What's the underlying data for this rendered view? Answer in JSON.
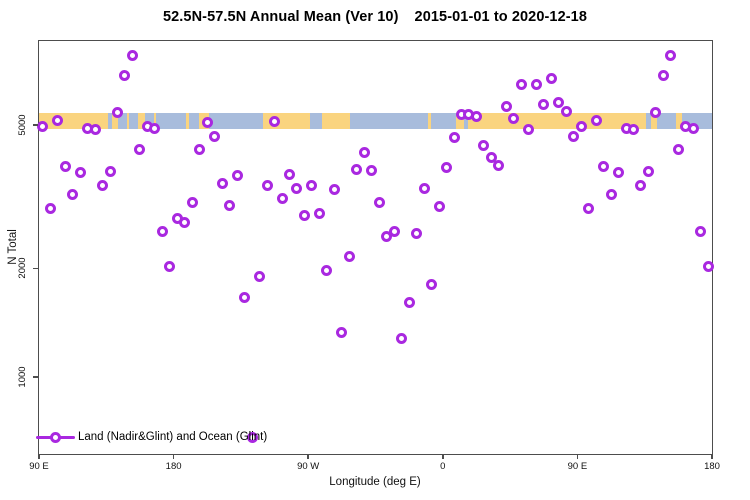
{
  "figure": {
    "title_main": "52.5N-57.5N Annual Mean (Ver 10)",
    "title_dates": "2015-01-01 to 2020-12-18"
  },
  "chart_data": {
    "type": "scatter",
    "title": "52.5N-57.5N Annual Mean (Ver 10)  2015-01-01 to 2020-12-18",
    "xlabel": "Longitude (deg E)",
    "ylabel": "N Total",
    "x_axis": {
      "range": [
        90,
        540
      ],
      "ticks": [
        90,
        180,
        270,
        360,
        450,
        540
      ],
      "tick_labels": [
        "90 E",
        "180",
        "90 W",
        "0",
        "90 E",
        "180"
      ],
      "note": "axis runs eastward from 90E around the globe; the 90E-180 sector is plotted twice (far left and far right)"
    },
    "y_axis": {
      "scale": "log10",
      "range": [
        610,
        8570
      ],
      "ticks": [
        1000,
        2000,
        5000
      ],
      "tick_labels": [
        "1000",
        "2000",
        "5000"
      ]
    },
    "legend": {
      "label": "Land (Nadir&Glint) and Ocean (Glint)",
      "marker": "open-circle-on-line",
      "position": "bottom-left"
    },
    "colors": {
      "point_stroke": "#A928E0",
      "point_fill": "#FFFFFF",
      "land_band": "#FAD47F",
      "ocean_band": "#A8BCDC",
      "axis": "#4D4D4D",
      "text": "#000000"
    },
    "map_band": {
      "description": "surface-type strip (land vs ocean) for the 52.5N-57.5N latitude belt, drawn horizontally at N~5000",
      "segments": [
        [
          90,
          136,
          "land"
        ],
        [
          136,
          139,
          "ocean"
        ],
        [
          139,
          143,
          "land"
        ],
        [
          143,
          149,
          "ocean"
        ],
        [
          149,
          150.5,
          "land"
        ],
        [
          150.5,
          156,
          "ocean"
        ],
        [
          156,
          161,
          "land"
        ],
        [
          161,
          167,
          "ocean"
        ],
        [
          167,
          168.5,
          "land"
        ],
        [
          168.5,
          188,
          "ocean"
        ],
        [
          188,
          190,
          "land"
        ],
        [
          190,
          197,
          "ocean"
        ],
        [
          197,
          204,
          "land"
        ],
        [
          204,
          240,
          "ocean"
        ],
        [
          240,
          271,
          "land"
        ],
        [
          271,
          279,
          "ocean"
        ],
        [
          279,
          298,
          "land"
        ],
        [
          298,
          350,
          "ocean"
        ],
        [
          350,
          352,
          "land"
        ],
        [
          352,
          369,
          "ocean"
        ],
        [
          369,
          374,
          "land"
        ],
        [
          374,
          377,
          "ocean"
        ],
        [
          377,
          496,
          "land"
        ],
        [
          496,
          499,
          "ocean"
        ],
        [
          499,
          503.5,
          "land"
        ],
        [
          503.5,
          516,
          "ocean"
        ],
        [
          516,
          520,
          "land"
        ],
        [
          520,
          540,
          "ocean"
        ]
      ]
    },
    "points_lon_value": [
      [
        92.5,
        4950
      ],
      [
        97.5,
        2930
      ],
      [
        102.5,
        5160
      ],
      [
        107.5,
        3835
      ],
      [
        112.5,
        3215
      ],
      [
        117.5,
        3690
      ],
      [
        122.5,
        4890
      ],
      [
        127.5,
        4875
      ],
      [
        132.5,
        3390
      ],
      [
        137.5,
        3710
      ],
      [
        142.5,
        5425
      ],
      [
        147.5,
        6875
      ],
      [
        152.5,
        7800
      ],
      [
        157.5,
        4290
      ],
      [
        162.5,
        4950
      ],
      [
        167.5,
        4905
      ],
      [
        172.5,
        2525
      ],
      [
        177.5,
        2020
      ],
      [
        182.5,
        2745
      ],
      [
        187.5,
        2675
      ],
      [
        192.5,
        3040
      ],
      [
        197.5,
        4280
      ],
      [
        202.5,
        5100
      ],
      [
        207.5,
        4655
      ],
      [
        212.5,
        3435
      ],
      [
        217.5,
        2985
      ],
      [
        222.5,
        3615
      ],
      [
        227.5,
        1665
      ],
      [
        232.5,
        680
      ],
      [
        237.5,
        1905
      ],
      [
        242.5,
        3410
      ],
      [
        247.5,
        5130
      ],
      [
        252.5,
        3120
      ],
      [
        257.5,
        3640
      ],
      [
        262.5,
        3345
      ],
      [
        267.5,
        2800
      ],
      [
        272.5,
        3410
      ],
      [
        277.5,
        2835
      ],
      [
        282.5,
        1970
      ],
      [
        287.5,
        3305
      ],
      [
        292.5,
        1325
      ],
      [
        297.5,
        2165
      ],
      [
        302.5,
        3760
      ],
      [
        307.5,
        4200
      ],
      [
        312.5,
        3735
      ],
      [
        317.5,
        3040
      ],
      [
        322.5,
        2460
      ],
      [
        327.5,
        2540
      ],
      [
        332.5,
        1280
      ],
      [
        337.5,
        1605
      ],
      [
        342.5,
        2495
      ],
      [
        347.5,
        3345
      ],
      [
        352.5,
        1800
      ],
      [
        357.5,
        2965
      ],
      [
        362.5,
        3810
      ],
      [
        367.5,
        4625
      ],
      [
        372.5,
        5340
      ],
      [
        377.5,
        5370
      ],
      [
        382.5,
        5300
      ],
      [
        387.5,
        4390
      ],
      [
        392.5,
        4065
      ],
      [
        397.5,
        3860
      ],
      [
        402.5,
        5640
      ],
      [
        407.5,
        5220
      ],
      [
        412.5,
        6470
      ],
      [
        417.5,
        4860
      ],
      [
        422.5,
        6500
      ],
      [
        427.5,
        5690
      ],
      [
        432.5,
        6760
      ],
      [
        437.5,
        5790
      ],
      [
        442.5,
        5470
      ],
      [
        447.5,
        4655
      ],
      [
        452.5,
        4950
      ],
      [
        457.5,
        2930
      ],
      [
        462.5,
        5160
      ],
      [
        467.5,
        3835
      ],
      [
        472.5,
        3215
      ],
      [
        477.5,
        3690
      ],
      [
        482.5,
        4890
      ],
      [
        487.5,
        4875
      ],
      [
        492.5,
        3390
      ],
      [
        497.5,
        3710
      ],
      [
        502.5,
        5425
      ],
      [
        507.5,
        6875
      ],
      [
        512.5,
        7800
      ],
      [
        517.5,
        4290
      ],
      [
        522.5,
        4950
      ],
      [
        527.5,
        4905
      ],
      [
        532.5,
        2525
      ],
      [
        537.5,
        2020
      ]
    ]
  }
}
